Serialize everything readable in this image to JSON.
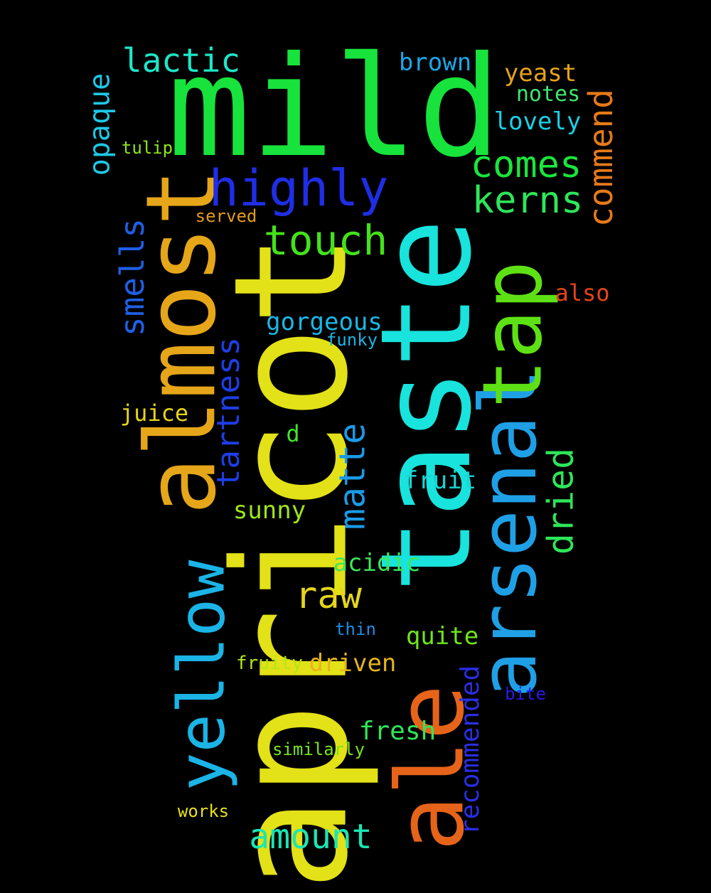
{
  "words": [
    {
      "text": "apricot",
      "color": "#e3e117"
    },
    {
      "text": "taste",
      "color": "#18e3dc"
    },
    {
      "text": "mild",
      "color": "#17e33c"
    },
    {
      "text": "almost",
      "color": "#e6a619"
    },
    {
      "text": "arsenal",
      "color": "#1fa0e6"
    },
    {
      "text": "tap",
      "color": "#5ee114"
    },
    {
      "text": "ale",
      "color": "#e6641a"
    },
    {
      "text": "yellow",
      "color": "#1bb4e6"
    },
    {
      "text": "highly",
      "color": "#1f2ee6"
    },
    {
      "text": "touch",
      "color": "#44e11a"
    },
    {
      "text": "comes",
      "color": "#1ae63c"
    },
    {
      "text": "kerns",
      "color": "#2ee65a"
    },
    {
      "text": "commend",
      "color": "#e67a1a"
    },
    {
      "text": "lactic",
      "color": "#1ee6c8"
    },
    {
      "text": "opaque",
      "color": "#1ec8e6"
    },
    {
      "text": "brown",
      "color": "#1aa6e6"
    },
    {
      "text": "yeast",
      "color": "#e6a319"
    },
    {
      "text": "notes",
      "color": "#3ee66e"
    },
    {
      "text": "lovely",
      "color": "#1ad0e6"
    },
    {
      "text": "tulip",
      "color": "#8ee61a"
    },
    {
      "text": "served",
      "color": "#e69a19"
    },
    {
      "text": "smells",
      "color": "#1f5fe6"
    },
    {
      "text": "also",
      "color": "#e6441a"
    },
    {
      "text": "gorgeous",
      "color": "#1ab8e6"
    },
    {
      "text": "funky",
      "color": "#1ab4e6"
    },
    {
      "text": "tartness",
      "color": "#1e3ee6"
    },
    {
      "text": "juice",
      "color": "#e6d61a"
    },
    {
      "text": "d",
      "color": "#3ee62a"
    },
    {
      "text": "matte",
      "color": "#1a9ae6"
    },
    {
      "text": "dried",
      "color": "#2ee65a"
    },
    {
      "text": "fruit",
      "color": "#1ad6d6"
    },
    {
      "text": "sunny",
      "color": "#9ee61a"
    },
    {
      "text": "acidic",
      "color": "#3ee65a"
    },
    {
      "text": "raw",
      "color": "#e6d61a"
    },
    {
      "text": "thin",
      "color": "#1a8ee6"
    },
    {
      "text": "quite",
      "color": "#6ee61a"
    },
    {
      "text": "fruity",
      "color": "#b4e61a"
    },
    {
      "text": "driven",
      "color": "#e6b41a"
    },
    {
      "text": "recommended",
      "color": "#2a2ee6"
    },
    {
      "text": "bite",
      "color": "#2a1ae6"
    },
    {
      "text": "fresh",
      "color": "#2ee65a"
    },
    {
      "text": "similarly",
      "color": "#7ae61a"
    },
    {
      "text": "works",
      "color": "#e6e11a"
    },
    {
      "text": "amount",
      "color": "#1ae6b4"
    }
  ]
}
